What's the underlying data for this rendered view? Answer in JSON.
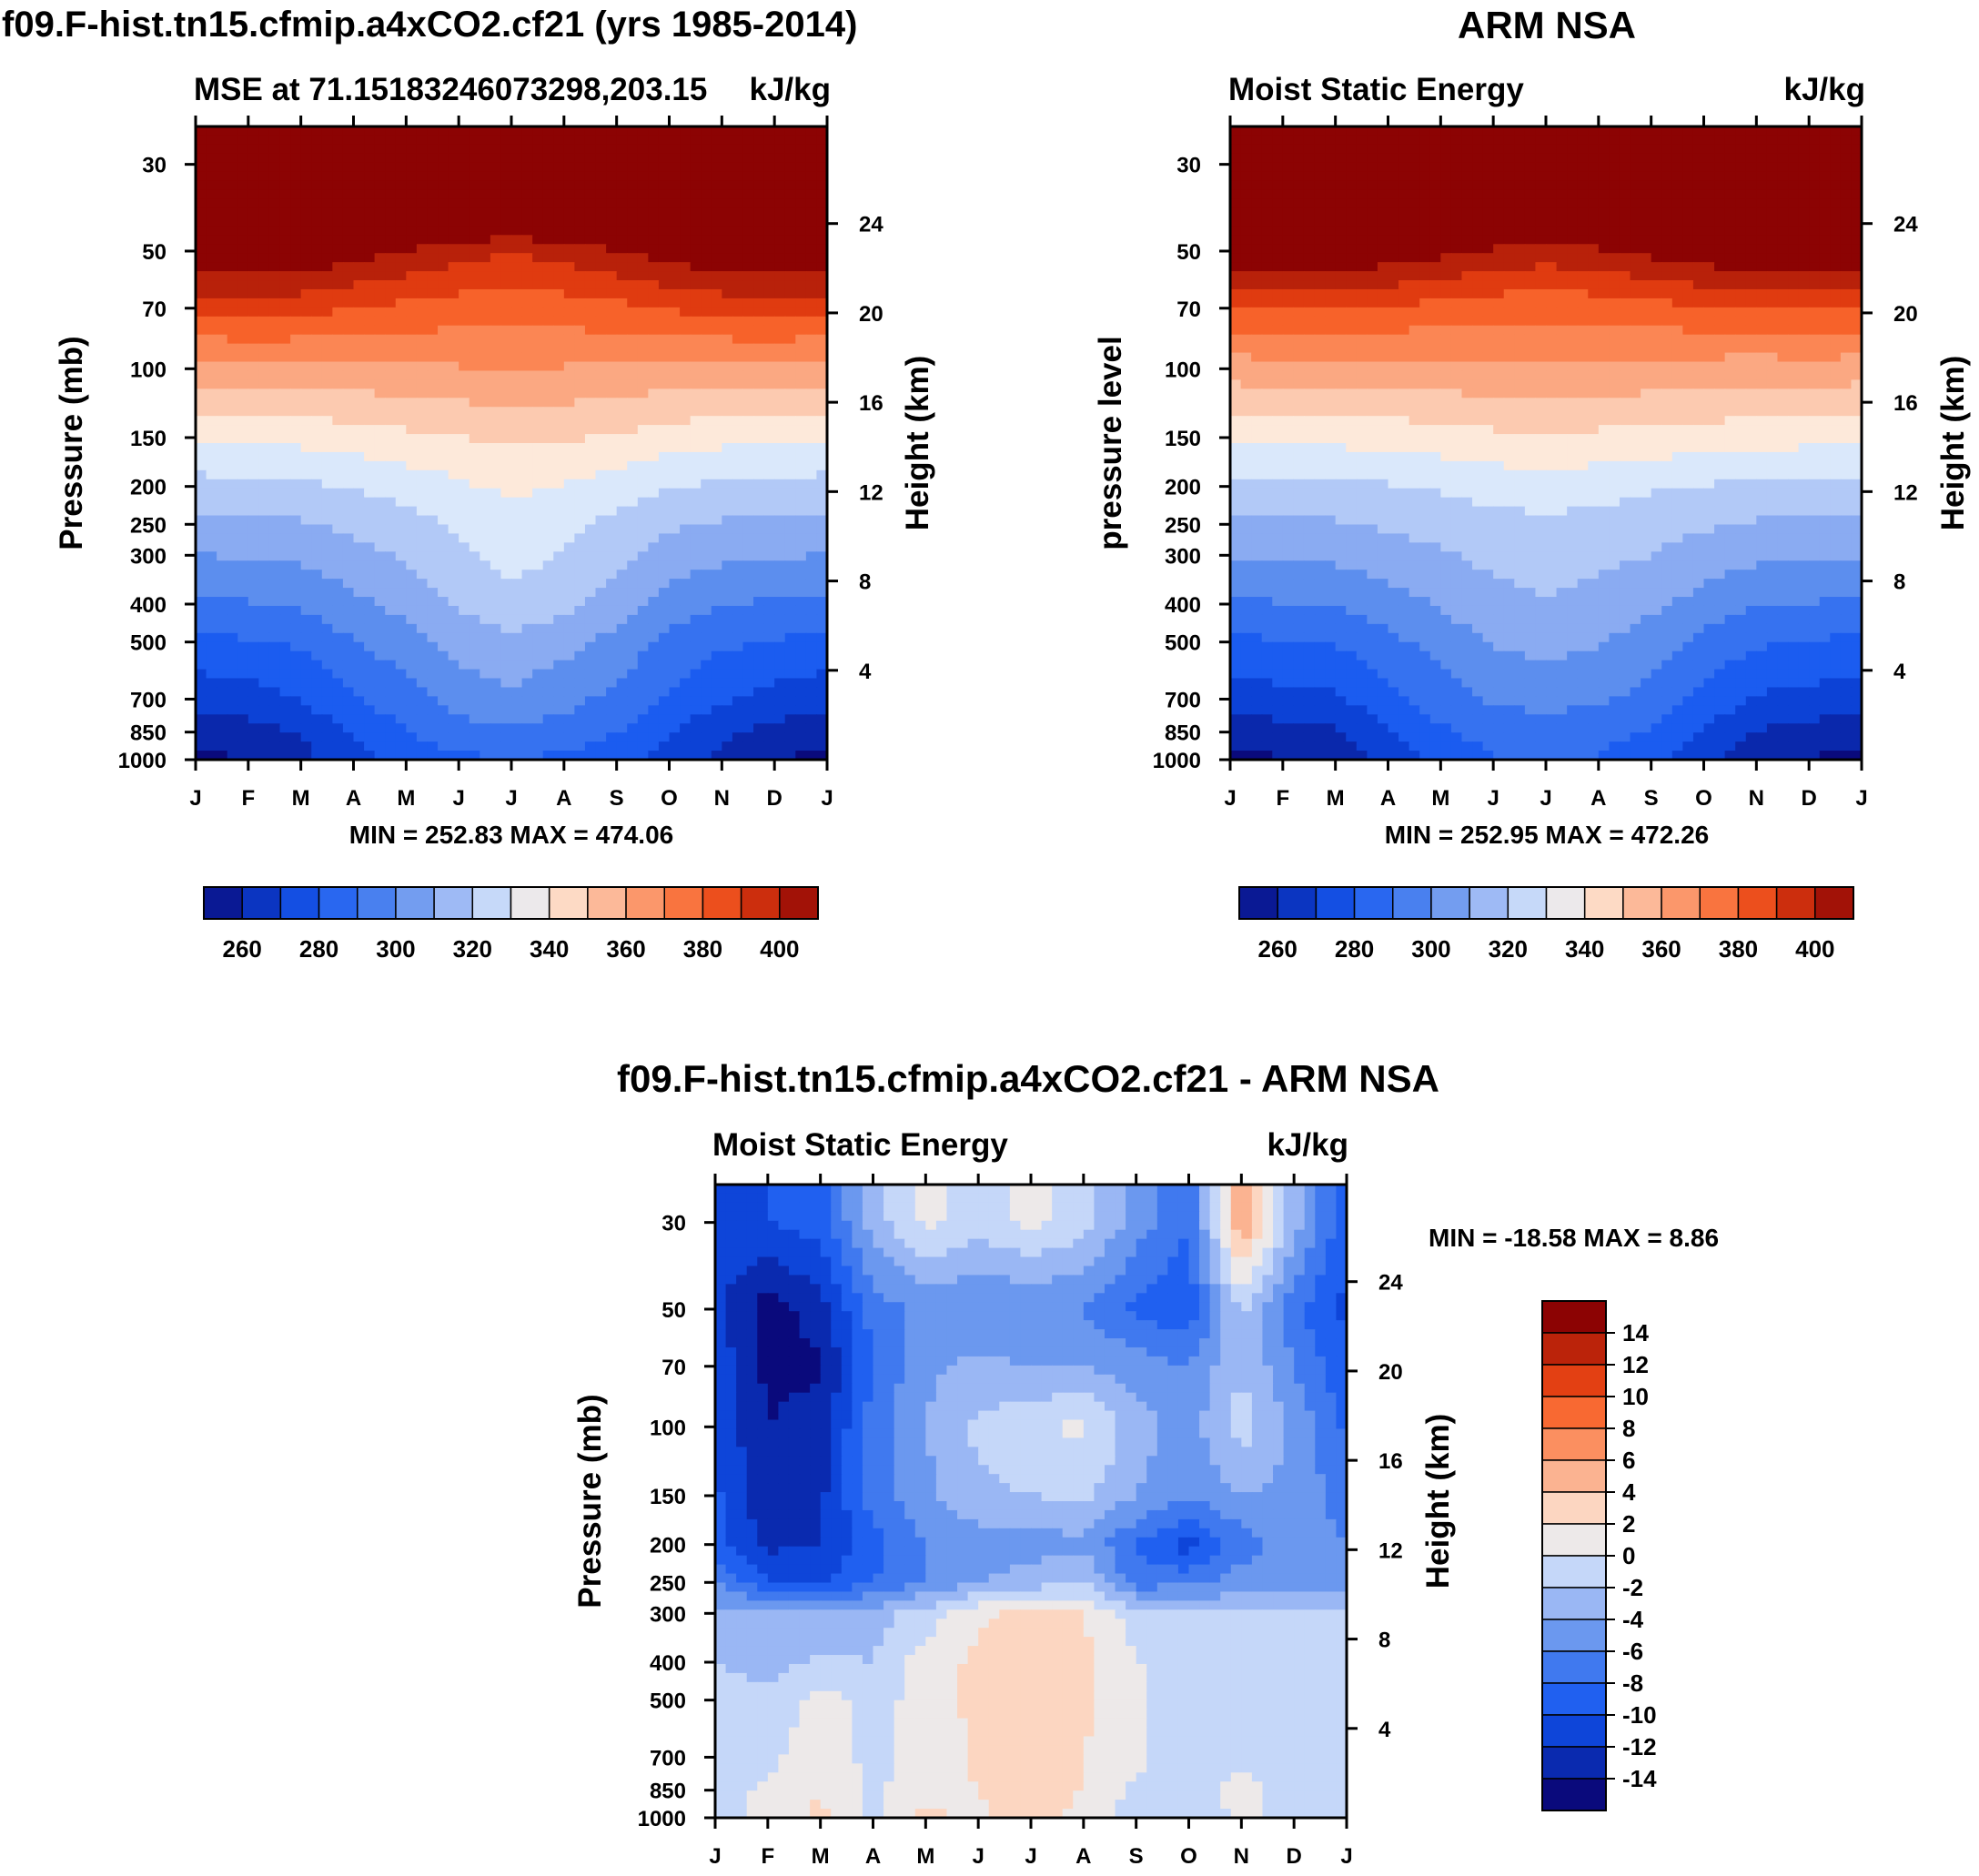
{
  "palette": {
    "mse": [
      "#0a0a7c",
      "#0a28ac",
      "#0c42d6",
      "#1b5cf0",
      "#3672f0",
      "#5c8eee",
      "#8aabf2",
      "#b2c9f7",
      "#dae8fb",
      "#fde9da",
      "#fccab0",
      "#fba882",
      "#fb8654",
      "#f7622a",
      "#e03b10",
      "#b8210a",
      "#8c0303"
    ],
    "diff": [
      "#0a0a7c",
      "#0a28ac",
      "#0c42d6",
      "#1b5cf0",
      "#3672f0",
      "#5c8eee",
      "#8aabf2",
      "#b2c9f7",
      "#dae8fb",
      "#fde9da",
      "#fccab0",
      "#fba882",
      "#fb8654",
      "#f7622a",
      "#e03b10",
      "#b8210a",
      "#8c0303"
    ]
  },
  "chart_data": [
    {
      "id": "model",
      "type": "heatmap",
      "title": "f09.F-hist.tn15.cfmip.a4xCO2.cf21 (yrs 1985-2014)",
      "subtitle_left": "MSE at 71.15183246073298,203.15",
      "subtitle_right": "kJ/kg",
      "ylabel": "Pressure (mb)",
      "ylabel_right": "Height (km)",
      "minmax": "MIN = 252.83 MAX = 474.06",
      "x_ticks": [
        "J",
        "F",
        "M",
        "A",
        "M",
        "J",
        "J",
        "A",
        "S",
        "O",
        "N",
        "D",
        "J"
      ],
      "y_ticks": [
        30,
        50,
        70,
        100,
        150,
        200,
        250,
        300,
        400,
        500,
        700,
        850,
        1000
      ],
      "height_ticks": [
        24,
        20,
        16,
        12,
        8,
        4
      ],
      "levels": [
        260,
        265,
        270,
        275,
        280,
        285,
        290,
        295,
        300,
        305,
        310,
        315,
        320,
        325,
        330,
        335,
        340,
        345,
        350,
        355,
        360,
        365,
        370,
        375,
        380,
        385,
        390,
        395,
        400
      ],
      "colorbar_labels": [
        260,
        280,
        300,
        320,
        340,
        360,
        380,
        400
      ],
      "x": [
        0,
        1,
        2,
        3,
        4,
        5,
        6,
        7,
        8,
        9,
        10,
        11,
        12
      ],
      "pressure": [
        1000,
        850,
        700,
        500,
        400,
        300,
        250,
        200,
        150,
        100,
        70,
        50,
        30
      ],
      "values": [
        [
          262,
          265,
          270,
          279,
          285,
          289,
          290,
          289,
          285,
          279,
          271,
          265,
          262
        ],
        [
          267,
          270,
          274,
          283,
          290,
          296,
          298,
          296,
          291,
          283,
          275,
          270,
          267
        ],
        [
          276,
          278,
          282,
          290,
          296,
          303,
          306,
          302,
          297,
          289,
          283,
          279,
          276
        ],
        [
          288,
          290,
          292,
          299,
          304,
          311,
          315,
          311,
          305,
          297,
          292,
          290,
          288
        ],
        [
          297,
          299,
          301,
          306,
          311,
          318,
          323,
          319,
          312,
          305,
          300,
          298,
          297
        ],
        [
          308,
          309,
          310,
          314,
          318,
          324,
          329,
          325,
          319,
          313,
          310,
          309,
          308
        ],
        [
          314,
          315,
          316,
          319,
          322,
          327,
          331,
          328,
          323,
          318,
          316,
          315,
          314
        ],
        [
          322,
          323,
          324,
          326,
          329,
          333,
          336,
          334,
          330,
          326,
          324,
          323,
          322
        ],
        [
          336,
          337,
          337,
          339,
          341,
          343,
          345,
          344,
          342,
          339,
          337,
          337,
          336
        ],
        [
          357,
          358,
          358,
          358,
          359,
          360,
          361,
          360,
          359,
          358,
          358,
          358,
          357
        ],
        [
          381,
          382,
          381,
          378,
          376,
          374,
          373,
          374,
          376,
          379,
          381,
          382,
          381
        ],
        [
          405,
          406,
          405,
          400,
          395,
          390,
          388,
          390,
          395,
          400,
          405,
          406,
          405
        ],
        [
          440,
          440,
          440,
          440,
          440,
          440,
          440,
          440,
          440,
          440,
          440,
          440,
          440
        ]
      ]
    },
    {
      "id": "obs",
      "type": "heatmap",
      "title": "ARM NSA",
      "subtitle_left": "Moist Static Energy",
      "subtitle_right": "kJ/kg",
      "ylabel": "pressure level",
      "ylabel_right": "Height (km)",
      "minmax": "MIN = 252.95 MAX = 472.26",
      "x_ticks": [
        "J",
        "F",
        "M",
        "A",
        "M",
        "J",
        "J",
        "A",
        "S",
        "O",
        "N",
        "D",
        "J"
      ],
      "y_ticks": [
        30,
        50,
        70,
        100,
        150,
        200,
        250,
        300,
        400,
        500,
        700,
        850,
        1000
      ],
      "height_ticks": [
        24,
        20,
        16,
        12,
        8,
        4
      ],
      "levels": [
        260,
        265,
        270,
        275,
        280,
        285,
        290,
        295,
        300,
        305,
        310,
        315,
        320,
        325,
        330,
        335,
        340,
        345,
        350,
        355,
        360,
        365,
        370,
        375,
        380,
        385,
        390,
        395,
        400
      ],
      "colorbar_labels": [
        260,
        280,
        300,
        320,
        340,
        360,
        380,
        400
      ],
      "x": [
        0,
        1,
        2,
        3,
        4,
        5,
        6,
        7,
        8,
        9,
        10,
        11,
        12
      ],
      "pressure": [
        1000,
        850,
        700,
        500,
        400,
        300,
        250,
        200,
        150,
        100,
        70,
        50,
        30
      ],
      "values": [
        [
          261,
          264,
          267,
          276,
          284,
          290,
          291,
          290,
          285,
          276,
          268,
          264,
          261
        ],
        [
          268,
          270,
          272,
          281,
          289,
          294,
          295,
          294,
          290,
          281,
          273,
          270,
          268
        ],
        [
          277,
          279,
          280,
          288,
          295,
          301,
          302,
          301,
          296,
          288,
          281,
          279,
          277
        ],
        [
          289,
          290,
          291,
          297,
          303,
          309,
          311,
          309,
          304,
          297,
          292,
          290,
          289
        ],
        [
          298,
          299,
          300,
          304,
          309,
          314,
          316,
          314,
          310,
          305,
          300,
          299,
          298
        ],
        [
          309,
          309,
          310,
          313,
          316,
          319,
          321,
          319,
          317,
          313,
          310,
          309,
          309
        ],
        [
          315,
          315,
          316,
          318,
          320,
          323,
          324,
          323,
          320,
          318,
          316,
          315,
          315
        ],
        [
          323,
          323,
          323,
          325,
          327,
          329,
          330,
          329,
          327,
          325,
          324,
          323,
          323
        ],
        [
          337,
          337,
          337,
          338,
          339,
          341,
          342,
          341,
          340,
          339,
          338,
          337,
          337
        ],
        [
          356,
          357,
          357,
          357,
          358,
          359,
          360,
          359,
          358,
          357,
          356,
          357,
          356
        ],
        [
          378,
          379,
          379,
          377,
          375,
          373,
          372,
          373,
          375,
          377,
          378,
          378,
          378
        ],
        [
          405,
          405,
          405,
          402,
          398,
          394,
          392,
          394,
          398,
          402,
          405,
          405,
          405
        ],
        [
          440,
          440,
          440,
          440,
          440,
          440,
          440,
          440,
          440,
          440,
          440,
          440,
          440
        ]
      ]
    },
    {
      "id": "diff",
      "type": "heatmap",
      "title": "f09.F-hist.tn15.cfmip.a4xCO2.cf21 - ARM NSA",
      "subtitle_left": "Moist Static Energy",
      "subtitle_right": "kJ/kg",
      "ylabel": "Pressure (mb)",
      "ylabel_right": "Height (km)",
      "minmax": "MIN = -18.58 MAX =   8.86",
      "x_ticks": [
        "J",
        "F",
        "M",
        "A",
        "M",
        "J",
        "J",
        "A",
        "S",
        "O",
        "N",
        "D",
        "J"
      ],
      "y_ticks": [
        30,
        50,
        70,
        100,
        150,
        200,
        250,
        300,
        400,
        500,
        700,
        850,
        1000
      ],
      "height_ticks": [
        24,
        20,
        16,
        12,
        8,
        4
      ],
      "levels": [
        -14,
        -12,
        -10,
        -8,
        -6,
        -4,
        -2,
        0,
        2,
        4,
        6,
        8,
        10,
        12,
        14
      ],
      "colorbar_labels": [
        14,
        12,
        10,
        8,
        6,
        4,
        2,
        0,
        -2,
        -4,
        -6,
        -8,
        -10,
        -12,
        -14
      ],
      "x": [
        0,
        1,
        2,
        3,
        4,
        5,
        6,
        7,
        8,
        9,
        10,
        11,
        12
      ],
      "pressure": [
        1000,
        850,
        700,
        500,
        400,
        300,
        250,
        200,
        150,
        100,
        70,
        50,
        30
      ],
      "values": [
        [
          -1,
          0.5,
          2.5,
          -0.5,
          2.5,
          1.5,
          3,
          1,
          -1,
          -1.5,
          0.5,
          -1,
          -1.5
        ],
        [
          -1,
          0.5,
          2,
          -0.5,
          1.5,
          2,
          3.5,
          2,
          -0.5,
          -1.5,
          1,
          -1,
          -1.5
        ],
        [
          -1,
          -0.5,
          1,
          -0.5,
          0.5,
          2.5,
          4,
          2,
          0.5,
          -1.5,
          -1,
          -1,
          -1.5
        ],
        [
          -1,
          -1.5,
          1,
          -1,
          1,
          2.5,
          4,
          2.5,
          0.5,
          -1.5,
          -1.5,
          -1,
          -1.5
        ],
        [
          -2,
          -3,
          -1.5,
          -2,
          1,
          2.5,
          4,
          2.5,
          0.2,
          -1.5,
          -1.5,
          -1.5,
          -1.5
        ],
        [
          -3.5,
          -4,
          -3.5,
          -3,
          -1,
          1.5,
          2.5,
          2,
          -1,
          -2,
          -2,
          -2,
          -2
        ],
        [
          -5.5,
          -10,
          -10,
          -8,
          -6,
          -4,
          -3,
          -2,
          -7,
          -6.5,
          -5,
          -4.5,
          -5
        ],
        [
          -9.5,
          -12.5,
          -12,
          -9,
          -6,
          -5,
          -5,
          -4.5,
          -8,
          -11,
          -7,
          -5,
          -6
        ],
        [
          -9.5,
          -13.5,
          -12.5,
          -7,
          -4.5,
          -2.5,
          -2,
          -1.5,
          -4,
          -5.5,
          -4,
          -4.5,
          -7
        ],
        [
          -10.5,
          -14,
          -13,
          -7,
          -4,
          -1.5,
          -0.5,
          0.5,
          -3,
          -5,
          -1,
          -4.5,
          -8.5
        ],
        [
          -10.5,
          -14.5,
          -14.5,
          -8,
          -4.5,
          -3.5,
          -4,
          -4,
          -5,
          -6,
          -2,
          -6,
          -9.5
        ],
        [
          -11.5,
          -15,
          -13,
          -7,
          -5.5,
          -6,
          -6,
          -6,
          -8.5,
          -9.5,
          -1.5,
          -7.5,
          -10.5
        ],
        [
          -10.5,
          -10,
          -9,
          -3,
          0.5,
          -1,
          0.5,
          -1,
          -5,
          -8,
          6,
          -3,
          -9.5
        ]
      ]
    }
  ]
}
